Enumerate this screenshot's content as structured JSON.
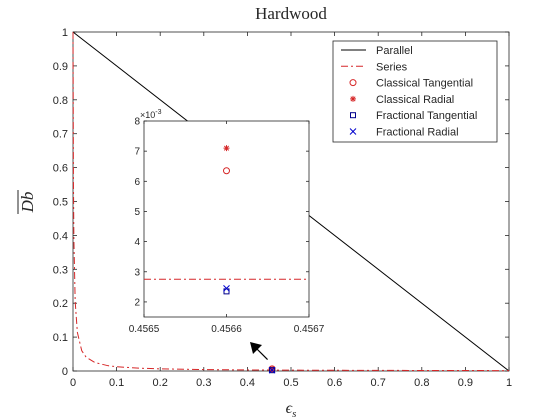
{
  "chart_data": {
    "type": "line",
    "title": "Hardwood",
    "xlabel": "ϵs",
    "ylabel": "Db",
    "xlim": [
      0,
      1
    ],
    "ylim": [
      0,
      1
    ],
    "xticks": [
      "0",
      "0.1",
      "0.2",
      "0.3",
      "0.4",
      "0.5",
      "0.6",
      "0.7",
      "0.8",
      "0.9",
      "1"
    ],
    "yticks": [
      "0",
      "0.1",
      "0.2",
      "0.3",
      "0.4",
      "0.5",
      "0.6",
      "0.7",
      "0.8",
      "0.9",
      "1"
    ],
    "grid": false,
    "legend_position": "top-right",
    "series": [
      {
        "name": "Parallel",
        "kind": "line",
        "color": "#000000",
        "dash": "solid",
        "x": [
          0,
          1
        ],
        "y": [
          1,
          0
        ]
      },
      {
        "name": "Series",
        "kind": "line",
        "color": "#d62728",
        "dash": "dashdot",
        "x": [
          0,
          0.001,
          0.002,
          0.005,
          0.01,
          0.02,
          0.03,
          0.05,
          0.08,
          0.1,
          0.15,
          0.2,
          0.3,
          0.4,
          0.5,
          0.6,
          0.7,
          0.8,
          0.9,
          1.0
        ],
        "y": [
          1,
          0.56,
          0.39,
          0.205,
          0.114,
          0.06,
          0.041,
          0.025,
          0.0157,
          0.0126,
          0.0084,
          0.0063,
          0.0042,
          0.0031,
          0.0025,
          0.0021,
          0.0018,
          0.0016,
          0.0014,
          0.0012
        ]
      },
      {
        "name": "Classical Tangential",
        "kind": "marker",
        "marker": "circle",
        "color": "#d62728",
        "x": [
          0.4566
        ],
        "y": [
          0.00635
        ]
      },
      {
        "name": "Classical Radial",
        "kind": "marker",
        "marker": "asterisk",
        "color": "#d62728",
        "x": [
          0.4566
        ],
        "y": [
          0.0071
        ]
      },
      {
        "name": "Fractional Tangential",
        "kind": "marker",
        "marker": "square",
        "color": "#00008b",
        "x": [
          0.4566
        ],
        "y": [
          0.00235
        ]
      },
      {
        "name": "Fractional Radial",
        "kind": "marker",
        "marker": "x",
        "color": "#0000cd",
        "x": [
          0.4566
        ],
        "y": [
          0.00245
        ]
      }
    ],
    "inset": {
      "xlim": [
        0.4565,
        0.4567
      ],
      "ylim": [
        0.0015,
        0.008
      ],
      "xticks": [
        "0.4565",
        "0.4566",
        "0.4567"
      ],
      "yticks": [
        "2",
        "3",
        "4",
        "5",
        "6",
        "7",
        "8"
      ],
      "ytick_values": [
        0.002,
        0.003,
        0.004,
        0.005,
        0.006,
        0.007,
        0.008
      ],
      "exponent_label": "×10",
      "exponent_power": "-3",
      "series_level": 0.00275,
      "pointer_target": [
        0.46,
        0.01
      ]
    }
  }
}
